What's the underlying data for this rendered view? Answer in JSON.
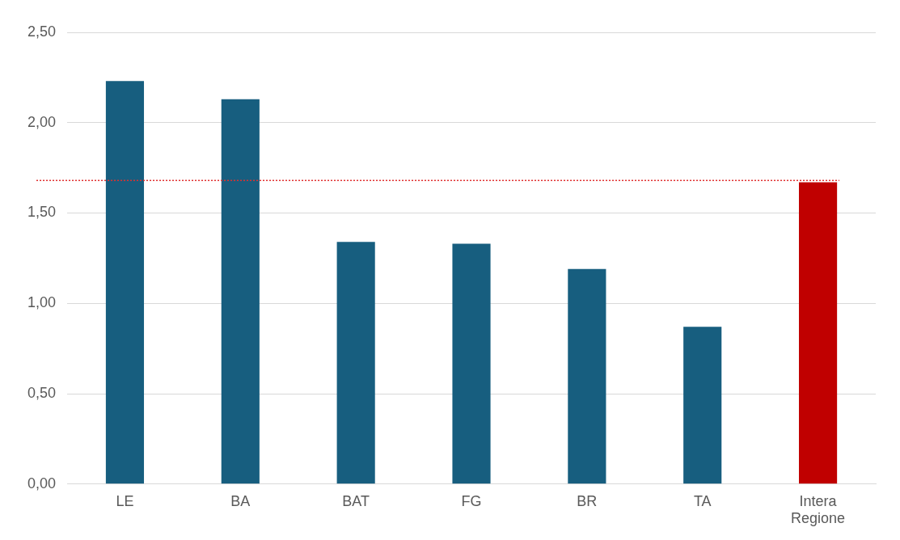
{
  "chart_data": {
    "type": "bar",
    "categories": [
      "LE",
      "BA",
      "BAT",
      "FG",
      "BR",
      "TA",
      "Intera Regione"
    ],
    "values": [
      2.23,
      2.13,
      1.34,
      1.33,
      1.19,
      0.87,
      1.67
    ],
    "colors": [
      "#175e7f",
      "#175e7f",
      "#175e7f",
      "#175e7f",
      "#175e7f",
      "#175e7f",
      "#c00000"
    ],
    "ylim": [
      0,
      2.5
    ],
    "yticks": [
      {
        "value": 0,
        "label": "0,00"
      },
      {
        "value": 0.5,
        "label": "0,50"
      },
      {
        "value": 1,
        "label": "1,00"
      },
      {
        "value": 1.5,
        "label": "1,50"
      },
      {
        "value": 2,
        "label": "2,00"
      },
      {
        "value": 2.5,
        "label": "2,50"
      }
    ],
    "grid": "y",
    "legend": false,
    "ref_lines": [
      {
        "axis": "y",
        "value": 1.68,
        "color": "#e03030",
        "line_style": "dotted"
      }
    ]
  }
}
